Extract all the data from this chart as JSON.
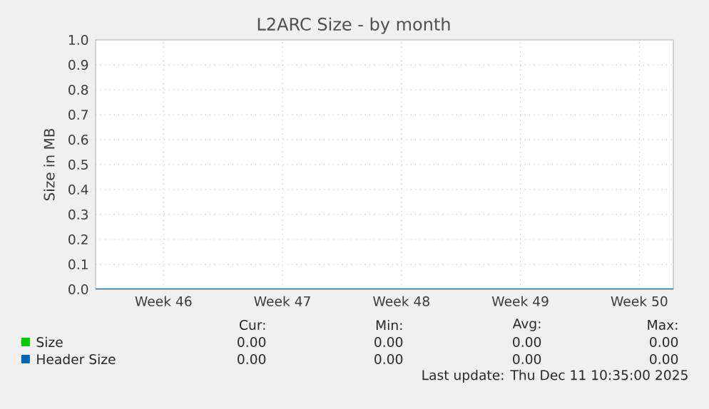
{
  "chart_data": {
    "type": "line",
    "title": "L2ARC Size - by month",
    "ylabel": "Size in MB",
    "x": [
      "2025-11-07",
      "2025-12-11"
    ],
    "series": [
      {
        "name": "Size",
        "color": "#00cc00",
        "values": [
          null,
          null
        ]
      },
      {
        "name": "Header Size",
        "color": "#0066b3",
        "values": [
          0,
          0
        ]
      }
    ],
    "xlim": [
      "2025-11-07",
      "2025-12-11"
    ],
    "xticks": [
      {
        "value": "2025-11-11",
        "label": "Week 46"
      },
      {
        "value": "2025-11-18",
        "label": "Week 47"
      },
      {
        "value": "2025-11-25",
        "label": "Week 48"
      },
      {
        "value": "2025-12-02",
        "label": "Week 49"
      },
      {
        "value": "2025-12-09",
        "label": "Week 50"
      }
    ],
    "ylim": [
      0,
      1
    ],
    "yticks": [
      {
        "value": 0,
        "label": "0.0"
      },
      0.1,
      0.2,
      0.3,
      0.4,
      0.5,
      0.6,
      0.7,
      0.8,
      0.9,
      {
        "value": 1,
        "label": "1.0"
      }
    ],
    "grid": true,
    "legend": "bottom left",
    "marker": "none",
    "line_style": "solid",
    "annotations": [
      "Cur:",
      "Min:",
      "Avg:",
      "Max:",
      "0.00",
      "0.00",
      "0.00",
      "0.00",
      "0.00",
      "0.00",
      "0.00",
      "0.00",
      "Last update: Thu Dec 11 10:35:00 2025"
    ]
  }
}
